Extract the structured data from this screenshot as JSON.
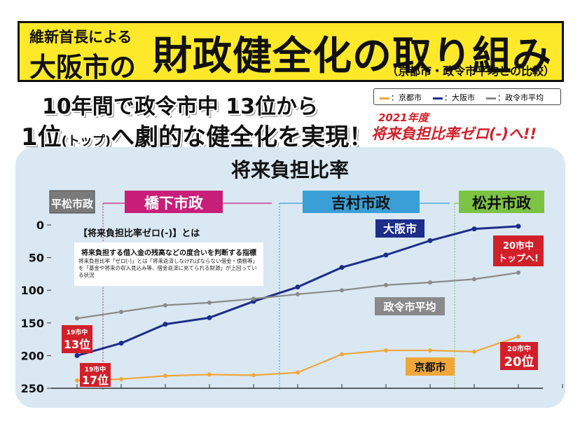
{
  "banner": {
    "subtitle": "維新首長による",
    "city": "大阪市の",
    "title": "財政健全化の取り組み",
    "comparison": "（京都市・政令市平均との比較）"
  },
  "headline": {
    "line1": "10年間で政令市中 13位から",
    "line2_prefix": "1位",
    "line2_small": "(トップ)",
    "line2_suffix": "へ劇的な健全化を実現！"
  },
  "legend": {
    "items": [
      {
        "label": "：京都市",
        "color": "#f0a73a"
      },
      {
        "label": "：大阪市",
        "color": "#1c2d8a"
      },
      {
        "label": "：政令市平均",
        "color": "#8a8a8a"
      }
    ]
  },
  "callout": {
    "year": "2021年度",
    "goal": "将来負担比率ゼロ(-)へ!!"
  },
  "chart_data": {
    "type": "line",
    "title": "将来負担比率",
    "ylim": [
      0,
      250
    ],
    "y_inverted": true,
    "y_ticks": [
      "0",
      "50",
      "100",
      "150",
      "200",
      "250"
    ],
    "x_count": 12,
    "series": [
      {
        "name": "大阪市",
        "color": "#1c2d8a",
        "values": [
          200,
          181,
          152,
          142,
          117,
          95,
          65,
          46,
          24,
          6,
          2
        ]
      },
      {
        "name": "政令市平均",
        "color": "#8a8a8a",
        "values": [
          143,
          133,
          123,
          119,
          113,
          106,
          100,
          92,
          88,
          83,
          73
        ]
      },
      {
        "name": "京都市",
        "color": "#f0a73a",
        "values": [
          238,
          236,
          231,
          229,
          230,
          226,
          198,
          192,
          192,
          194,
          171
        ]
      }
    ],
    "eras": [
      {
        "label": "平松市政",
        "color": "#7a7a7a"
      },
      {
        "label": "橋下市政",
        "color": "#c81e7a"
      },
      {
        "label": "吉村市政",
        "color": "#3a9fd6"
      },
      {
        "label": "松井市政",
        "color": "#7cc243"
      }
    ],
    "labels": {
      "osaka": "大阪市",
      "avg": "政令市平均",
      "kyoto": "京都市",
      "rank_top_1": "20市中",
      "rank_top_2": "トップへ!",
      "rank13_small": "19市中",
      "rank13": "13位",
      "rank17_small": "19市中",
      "rank17": "17位",
      "rank20_small": "20市中",
      "rank20": "20位"
    }
  },
  "note": {
    "title": "【将来負担比率ゼロ(-)】とは",
    "line1": "将来負担する借入金の残高などの度合いを判断する指標",
    "line2": "将来負担比率「ゼロ(-)」とは「将来返済しなければならない借金・債務等」を「基金や将来の収入見込み等、借金返済に充てられる財源」が上回っている状況"
  }
}
